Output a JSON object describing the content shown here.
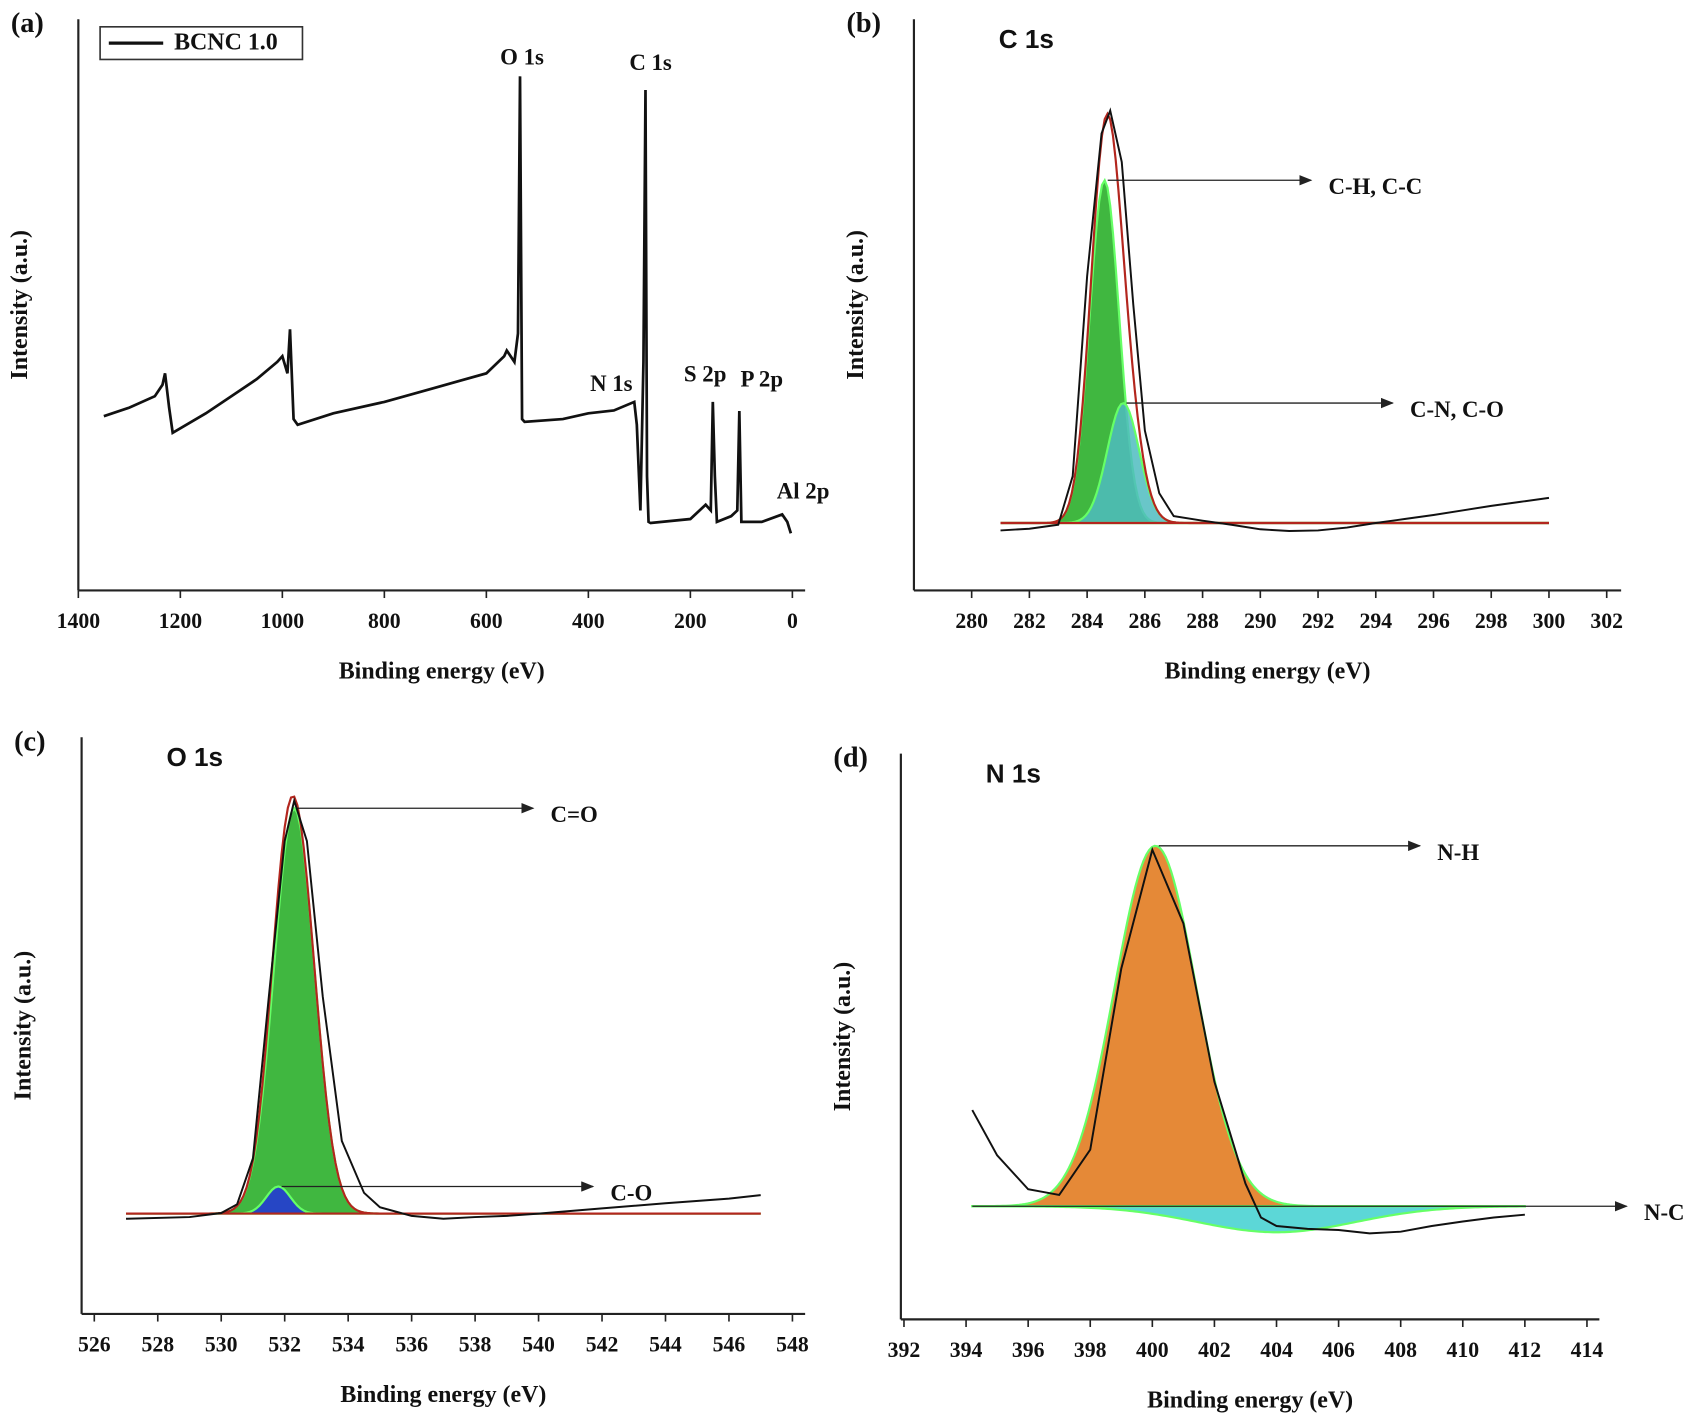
{
  "chart_data": [
    {
      "type": "line",
      "panel": "(a)",
      "xlabel": "Binding energy (eV)",
      "ylabel": "Intensity (a.u.)",
      "xlim": [
        1400,
        -25
      ],
      "ylim": [
        0,
        100
      ],
      "xticks": [
        1400,
        1200,
        1000,
        800,
        600,
        400,
        200,
        0
      ],
      "x": [
        1350,
        1300,
        1250,
        1235,
        1230,
        1222,
        1215,
        1150,
        1100,
        1050,
        1010,
        1000,
        990,
        985,
        978,
        970,
        900,
        800,
        700,
        600,
        565,
        560,
        545,
        538,
        534,
        530,
        525,
        450,
        400,
        350,
        310,
        305,
        298,
        292,
        288,
        285,
        282,
        278,
        200,
        170,
        160,
        156,
        152,
        148,
        120,
        108,
        104,
        100,
        60,
        20,
        10,
        3
      ],
      "series": [
        {
          "name": "BCNC 1.0",
          "color": "#111111",
          "values": [
            30.5,
            32,
            34,
            36,
            38,
            32,
            27.6,
            31,
            34,
            37,
            40,
            41,
            38,
            45.7,
            30,
            29,
            31,
            33,
            35.5,
            38,
            41,
            42,
            40,
            45,
            90,
            30,
            29.5,
            30,
            31,
            31.5,
            33,
            29,
            14,
            40,
            87.6,
            20,
            12,
            11.8,
            12.5,
            15,
            14,
            33,
            20,
            12,
            13,
            14,
            31.4,
            12,
            12,
            13.3,
            12,
            10
          ]
        }
      ],
      "annotations": [
        {
          "text": "O 1s",
          "x": 530,
          "y": 93
        },
        {
          "text": "C 1s",
          "x": 278,
          "y": 92
        },
        {
          "text": "N 1s",
          "x": 355,
          "y": 35.8
        },
        {
          "text": "S 2p",
          "x": 171,
          "y": 37.5
        },
        {
          "text": "P 2p",
          "x": 60,
          "y": 36.6
        },
        {
          "text": "Al 2p",
          "x": -21,
          "y": 17
        }
      ]
    },
    {
      "type": "line",
      "panel": "(b)",
      "title": "C 1s",
      "xlabel": "Binding energy (eV)",
      "ylabel": "Intensity (a.u.)",
      "xlim": [
        278,
        302.5
      ],
      "ylim": [
        0,
        100
      ],
      "xticks": [
        280,
        282,
        284,
        286,
        288,
        290,
        292,
        294,
        296,
        298,
        300,
        302
      ],
      "x": [
        281,
        282,
        283,
        283.5,
        284,
        284.5,
        284.8,
        285.2,
        285.6,
        286,
        286.5,
        287,
        288,
        289,
        290,
        291,
        292,
        293,
        294,
        295,
        296,
        297,
        298,
        299,
        300
      ],
      "series": [
        {
          "color": "#111111",
          "values": [
            10.5,
            10.8,
            11.5,
            20,
            55,
            80,
            84,
            75,
            50,
            28,
            17,
            13,
            12.2,
            11.5,
            10.7,
            10.4,
            10.5,
            11,
            11.8,
            12.5,
            13.2,
            14,
            14.8,
            15.5,
            16.2
          ]
        }
      ],
      "baseline": 11.8,
      "fit_range": [
        281,
        300
      ],
      "envelope_color": "#b3261e",
      "peaks": [
        {
          "label": "C-H, C-C",
          "center": 284.6,
          "height": 60,
          "fwhm": 1.2,
          "color": "#1faa1f"
        },
        {
          "label": "C-N, C-O",
          "center": 285.25,
          "height": 21,
          "fwhm": 1.3,
          "color": "#4fbcc0"
        }
      ]
    },
    {
      "type": "line",
      "panel": "(c)",
      "title": "O 1s",
      "xlabel": "Binding energy (eV)",
      "ylabel": "Intensity (a.u.)",
      "xlim": [
        525.6,
        548.4
      ],
      "ylim": [
        0,
        100
      ],
      "xticks": [
        526,
        528,
        530,
        532,
        534,
        536,
        538,
        540,
        542,
        544,
        546,
        548
      ],
      "x": [
        527,
        529,
        530,
        530.5,
        531,
        531.5,
        532,
        532.3,
        532.7,
        533.2,
        533.8,
        534.5,
        535,
        536,
        537,
        538,
        539,
        540,
        542,
        544,
        546,
        547
      ],
      "series": [
        {
          "color": "#111111",
          "values": [
            16.5,
            16.8,
            17.5,
            19,
            27,
            55,
            82,
            89,
            82,
            55,
            30,
            21,
            18.5,
            17,
            16.5,
            16.8,
            17,
            17.4,
            18.3,
            19.2,
            20,
            20.6
          ]
        }
      ],
      "baseline": 17.4,
      "fit_range": [
        527,
        547
      ],
      "envelope_color": "#b3261e",
      "peaks": [
        {
          "label": "C=O",
          "center": 532.3,
          "height": 70.3,
          "fwhm": 1.5,
          "color": "#1faa1f"
        },
        {
          "label": "C-O",
          "center": 531.8,
          "height": 4.7,
          "fwhm": 0.9,
          "color": "#2233dd"
        }
      ]
    },
    {
      "type": "line",
      "panel": "(d)",
      "title": "N 1s",
      "xlabel": "Binding energy (eV)",
      "ylabel": "Intensity (a.u.)",
      "xlim": [
        391.9,
        414.4
      ],
      "ylim": [
        0,
        100
      ],
      "xticks": [
        392,
        394,
        396,
        398,
        400,
        402,
        404,
        406,
        408,
        410,
        412,
        414
      ],
      "x": [
        394.2,
        395,
        396,
        396.5,
        397,
        398,
        399,
        400,
        401,
        402,
        403,
        403.5,
        404,
        405,
        406,
        407,
        408,
        409,
        410,
        411,
        412
      ],
      "series": [
        {
          "color": "#111111",
          "values": [
            37,
            29,
            23,
            22.5,
            22,
            30,
            62,
            83,
            70,
            42,
            24,
            18,
            16.5,
            16,
            15.8,
            15.2,
            15.5,
            16.5,
            17.3,
            18,
            18.5
          ]
        }
      ],
      "baseline": 20,
      "fit_range": [
        394.2,
        412
      ],
      "peaks": [
        {
          "label": "N-H",
          "center": 400.1,
          "height": 63.7,
          "fwhm": 3.1,
          "color": "#e07414"
        },
        {
          "label": "N-C",
          "center": 404,
          "height": -4.6,
          "fwhm": 6,
          "color": "#3fd0d0"
        }
      ]
    }
  ]
}
